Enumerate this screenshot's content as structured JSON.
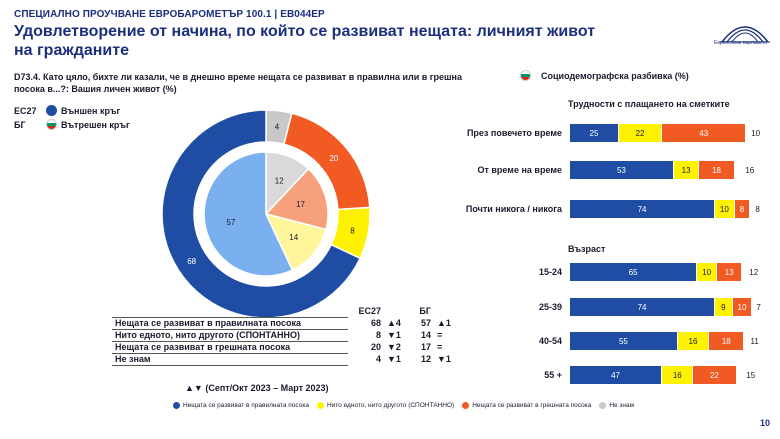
{
  "header": {
    "kicker": "СПЕЦИАЛНО ПРОУЧВАНЕ ЕВРОБАРОМЕТЪР 100.1 | EB044EP",
    "title": "Удовлетворение от начина, по който се развиват нещата: личният живот на гражданите",
    "logo_text": "Европейски парламент"
  },
  "question": "D73.4. Като цяло, бихте ли казали, че в днешно време нещата се развиват в правилна или в грешна посока в...?: Вашия личен живот (%)",
  "legend": {
    "eu_code": "ЕС27",
    "eu_label": "Външен кръг",
    "bg_code": "БГ",
    "bg_label": "Вътрешен кръг"
  },
  "socio_title": "Социодемографска разбивка (%)",
  "colors": {
    "right": "#1f4da3",
    "neither": "#fff200",
    "wrong": "#f15a22",
    "dk": "#c8c8c8"
  },
  "chart_data": [
    {
      "type": "pie",
      "name": "EU27 outer ring",
      "categories": [
        "Нещата се развиват в правилната посока",
        "Нито едното, нито другото (СПОНТАННО)",
        "Нещата се развиват в грешната посока",
        "Не знам"
      ],
      "values": [
        68,
        8,
        20,
        4
      ]
    },
    {
      "type": "pie",
      "name": "BG inner circle",
      "categories": [
        "Нещата се развиват в правилната посока",
        "Нито едното, нито другото (СПОНТАННО)",
        "Нещата се развиват в грешната посока",
        "Не знам"
      ],
      "values": [
        57,
        14,
        17,
        12
      ]
    },
    {
      "type": "bar",
      "orientation": "horizontal-stacked",
      "title": "Трудности с плащането на сметките",
      "categories": [
        "През повечето време",
        "От време на време",
        "Почти никога / никога"
      ],
      "series": [
        {
          "name": "Нещата се развиват в правилната посока",
          "values": [
            25,
            53,
            74
          ]
        },
        {
          "name": "Нито едното, нито другото (СПОНТАННО)",
          "values": [
            22,
            13,
            10
          ]
        },
        {
          "name": "Нещата се развиват в грешната посока",
          "values": [
            43,
            18,
            8
          ]
        },
        {
          "name": "Не знам",
          "values": [
            10,
            16,
            8
          ]
        }
      ]
    },
    {
      "type": "bar",
      "orientation": "horizontal-stacked",
      "title": "Възраст",
      "categories": [
        "15-24",
        "25-39",
        "40-54",
        "55 +"
      ],
      "series": [
        {
          "name": "Нещата се развиват в правилната посока",
          "values": [
            65,
            74,
            55,
            47
          ]
        },
        {
          "name": "Нито едното, нито другото (СПОНТАННО)",
          "values": [
            10,
            9,
            16,
            16
          ]
        },
        {
          "name": "Нещата се развиват в грешната посока",
          "values": [
            13,
            10,
            18,
            22
          ]
        },
        {
          "name": "Не знам",
          "values": [
            12,
            7,
            11,
            15
          ]
        }
      ]
    }
  ],
  "table": {
    "headers": [
      "ЕС27",
      "БГ"
    ],
    "rows": [
      {
        "label": "Нещата се развиват в правилната посока",
        "eu": "68",
        "eu_chg": "▲4",
        "bg": "57",
        "bg_chg": "▲1"
      },
      {
        "label": "Нито едното, нито другото (СПОНТАННО)",
        "eu": "8",
        "eu_chg": "▼1",
        "bg": "14",
        "bg_chg": "="
      },
      {
        "label": "Нещата се развиват в грешната посока",
        "eu": "20",
        "eu_chg": "▼2",
        "bg": "17",
        "bg_chg": "="
      },
      {
        "label": "Не знам",
        "eu": "4",
        "eu_chg": "▼1",
        "bg": "12",
        "bg_chg": "▼1"
      }
    ],
    "note": "▲▼ (Септ/Окт 2023 – Март 2023)"
  },
  "bottom_legend": [
    "Нещата се развиват в правилната посока",
    "Нито едното, нито другото (СПОНТАННО)",
    "Нещата се развиват в грешната посока",
    "Не знам"
  ],
  "page_number": "10"
}
